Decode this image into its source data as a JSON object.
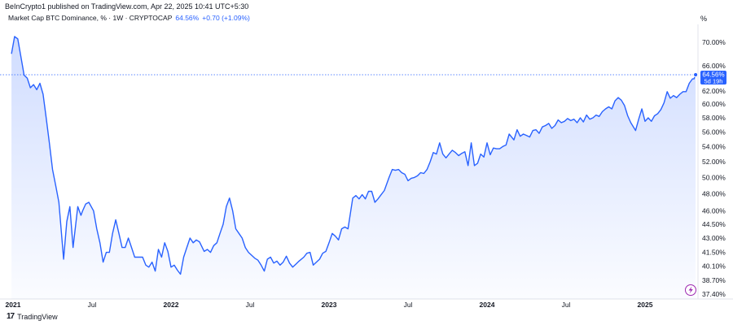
{
  "header": {
    "published_by": "BeInCrypto1 published on TradingView.com, Apr 22, 2025 10:41 UTC+5:30"
  },
  "legend": {
    "title": "Market Cap BTC Dominance, % · 1W · CRYPTOCAP",
    "value": "64.56%",
    "change": "+0.70 (+1.09%)"
  },
  "axis": {
    "unit": "%"
  },
  "price_label": {
    "value": "64.56%",
    "countdown": "5d 19h"
  },
  "footer": {
    "logo": "17",
    "brand": "TradingView"
  },
  "colors": {
    "line": "#2962ff",
    "label_bg": "#2962ff"
  },
  "chart_data": {
    "type": "area",
    "title": "Market Cap BTC Dominance, % · 1W · CRYPTOCAP",
    "y_tick_labels": [
      "70.00%",
      "66.00%",
      "62.00%",
      "60.00%",
      "58.00%",
      "56.00%",
      "54.00%",
      "52.00%",
      "50.00%",
      "48.00%",
      "46.00%",
      "44.50%",
      "43.00%",
      "41.50%",
      "40.10%",
      "38.70%",
      "37.40%"
    ],
    "y_tick_values": [
      70.0,
      66.0,
      62.0,
      60.0,
      58.0,
      56.0,
      54.0,
      52.0,
      50.0,
      48.0,
      46.0,
      44.5,
      43.0,
      41.5,
      40.1,
      38.7,
      37.4
    ],
    "scale": "log",
    "x_tick_labels": [
      {
        "label": "2021",
        "t": 2021.0,
        "bold": true
      },
      {
        "label": "Jul",
        "t": 2021.5,
        "bold": false
      },
      {
        "label": "2022",
        "t": 2022.0,
        "bold": true
      },
      {
        "label": "Jul",
        "t": 2022.5,
        "bold": false
      },
      {
        "label": "2023",
        "t": 2023.0,
        "bold": true
      },
      {
        "label": "Jul",
        "t": 2023.5,
        "bold": false
      },
      {
        "label": "2024",
        "t": 2024.0,
        "bold": true
      },
      {
        "label": "Jul",
        "t": 2024.5,
        "bold": false
      },
      {
        "label": "2025",
        "t": 2025.0,
        "bold": true
      }
    ],
    "last_value": 64.56,
    "series": [
      {
        "points": [
          [
            2020.99,
            68.0
          ],
          [
            2021.01,
            71.0
          ],
          [
            2021.03,
            70.6
          ],
          [
            2021.05,
            67.5
          ],
          [
            2021.07,
            64.5
          ],
          [
            2021.09,
            64.0
          ],
          [
            2021.11,
            62.5
          ],
          [
            2021.13,
            63.0
          ],
          [
            2021.15,
            62.2
          ],
          [
            2021.17,
            63.2
          ],
          [
            2021.19,
            61.5
          ],
          [
            2021.21,
            58.0
          ],
          [
            2021.23,
            54.5
          ],
          [
            2021.25,
            51.0
          ],
          [
            2021.27,
            49.0
          ],
          [
            2021.29,
            47.0
          ],
          [
            2021.32,
            40.8
          ],
          [
            2021.34,
            44.8
          ],
          [
            2021.36,
            46.5
          ],
          [
            2021.38,
            42.0
          ],
          [
            2021.41,
            46.5
          ],
          [
            2021.43,
            45.5
          ],
          [
            2021.44,
            46.0
          ],
          [
            2021.46,
            46.8
          ],
          [
            2021.48,
            47.0
          ],
          [
            2021.51,
            46.0
          ],
          [
            2021.53,
            44.0
          ],
          [
            2021.55,
            42.5
          ],
          [
            2021.57,
            40.5
          ],
          [
            2021.59,
            41.5
          ],
          [
            2021.61,
            41.5
          ],
          [
            2021.63,
            43.5
          ],
          [
            2021.65,
            45.0
          ],
          [
            2021.67,
            43.5
          ],
          [
            2021.69,
            42.0
          ],
          [
            2021.71,
            42.0
          ],
          [
            2021.73,
            43.0
          ],
          [
            2021.75,
            42.0
          ],
          [
            2021.77,
            41.0
          ],
          [
            2021.79,
            41.0
          ],
          [
            2021.82,
            41.0
          ],
          [
            2021.84,
            40.2
          ],
          [
            2021.86,
            40.0
          ],
          [
            2021.88,
            40.5
          ],
          [
            2021.9,
            39.6
          ],
          [
            2021.92,
            41.8
          ],
          [
            2021.94,
            41.0
          ],
          [
            2021.96,
            42.5
          ],
          [
            2021.98,
            41.6
          ],
          [
            2022.0,
            40.0
          ],
          [
            2022.02,
            40.2
          ],
          [
            2022.04,
            39.7
          ],
          [
            2022.06,
            39.3
          ],
          [
            2022.08,
            41.0
          ],
          [
            2022.1,
            42.0
          ],
          [
            2022.12,
            43.0
          ],
          [
            2022.14,
            42.5
          ],
          [
            2022.16,
            42.8
          ],
          [
            2022.18,
            42.6
          ],
          [
            2022.21,
            41.6
          ],
          [
            2022.23,
            41.8
          ],
          [
            2022.25,
            41.5
          ],
          [
            2022.27,
            42.2
          ],
          [
            2022.29,
            42.5
          ],
          [
            2022.31,
            43.5
          ],
          [
            2022.33,
            44.5
          ],
          [
            2022.35,
            46.5
          ],
          [
            2022.37,
            47.5
          ],
          [
            2022.39,
            46.0
          ],
          [
            2022.41,
            44.0
          ],
          [
            2022.43,
            43.5
          ],
          [
            2022.45,
            43.0
          ],
          [
            2022.47,
            42.0
          ],
          [
            2022.49,
            41.5
          ],
          [
            2022.51,
            41.2
          ],
          [
            2022.53,
            40.9
          ],
          [
            2022.55,
            40.7
          ],
          [
            2022.57,
            40.2
          ],
          [
            2022.59,
            39.6
          ],
          [
            2022.61,
            40.8
          ],
          [
            2022.63,
            41.0
          ],
          [
            2022.65,
            40.4
          ],
          [
            2022.67,
            40.6
          ],
          [
            2022.69,
            40.2
          ],
          [
            2022.71,
            40.5
          ],
          [
            2022.73,
            41.1
          ],
          [
            2022.75,
            40.4
          ],
          [
            2022.77,
            40.0
          ],
          [
            2022.79,
            40.3
          ],
          [
            2022.81,
            40.6
          ],
          [
            2022.84,
            41.0
          ],
          [
            2022.86,
            41.4
          ],
          [
            2022.88,
            41.5
          ],
          [
            2022.9,
            40.2
          ],
          [
            2022.92,
            40.5
          ],
          [
            2022.94,
            40.8
          ],
          [
            2022.96,
            41.4
          ],
          [
            2022.98,
            41.6
          ],
          [
            2023.0,
            42.5
          ],
          [
            2023.02,
            43.5
          ],
          [
            2023.04,
            43.2
          ],
          [
            2023.06,
            42.8
          ],
          [
            2023.08,
            44.0
          ],
          [
            2023.1,
            44.2
          ],
          [
            2023.12,
            44.0
          ],
          [
            2023.15,
            47.5
          ],
          [
            2023.17,
            47.8
          ],
          [
            2023.19,
            47.4
          ],
          [
            2023.21,
            47.9
          ],
          [
            2023.23,
            47.4
          ],
          [
            2023.25,
            48.3
          ],
          [
            2023.27,
            48.3
          ],
          [
            2023.29,
            47.0
          ],
          [
            2023.31,
            47.4
          ],
          [
            2023.33,
            47.9
          ],
          [
            2023.35,
            48.4
          ],
          [
            2023.38,
            50.0
          ],
          [
            2023.4,
            51.0
          ],
          [
            2023.42,
            50.9
          ],
          [
            2023.44,
            51.0
          ],
          [
            2023.46,
            50.6
          ],
          [
            2023.48,
            50.4
          ],
          [
            2023.5,
            49.6
          ],
          [
            2023.52,
            49.9
          ],
          [
            2023.54,
            50.0
          ],
          [
            2023.56,
            50.2
          ],
          [
            2023.58,
            50.6
          ],
          [
            2023.6,
            50.5
          ],
          [
            2023.62,
            51.0
          ],
          [
            2023.64,
            52.0
          ],
          [
            2023.66,
            53.2
          ],
          [
            2023.68,
            53.0
          ],
          [
            2023.7,
            54.5
          ],
          [
            2023.72,
            53.0
          ],
          [
            2023.74,
            52.5
          ],
          [
            2023.76,
            53.0
          ],
          [
            2023.78,
            53.5
          ],
          [
            2023.8,
            53.2
          ],
          [
            2023.82,
            52.8
          ],
          [
            2023.84,
            53.1
          ],
          [
            2023.86,
            53.3
          ],
          [
            2023.88,
            51.5
          ],
          [
            2023.9,
            54.5
          ],
          [
            2023.92,
            51.5
          ],
          [
            2023.94,
            51.8
          ],
          [
            2023.96,
            53.0
          ],
          [
            2023.98,
            52.6
          ],
          [
            2024.0,
            54.5
          ],
          [
            2024.02,
            52.9
          ],
          [
            2024.04,
            53.8
          ],
          [
            2024.06,
            53.7
          ],
          [
            2024.08,
            53.7
          ],
          [
            2024.1,
            54.0
          ],
          [
            2024.12,
            54.2
          ],
          [
            2024.14,
            55.7
          ],
          [
            2024.17,
            54.9
          ],
          [
            2024.19,
            56.3
          ],
          [
            2024.21,
            55.4
          ],
          [
            2024.23,
            55.7
          ],
          [
            2024.25,
            55.5
          ],
          [
            2024.27,
            55.3
          ],
          [
            2024.29,
            56.2
          ],
          [
            2024.31,
            56.3
          ],
          [
            2024.33,
            55.8
          ],
          [
            2024.35,
            56.7
          ],
          [
            2024.37,
            56.9
          ],
          [
            2024.39,
            57.2
          ],
          [
            2024.41,
            56.5
          ],
          [
            2024.43,
            56.9
          ],
          [
            2024.45,
            57.7
          ],
          [
            2024.47,
            57.3
          ],
          [
            2024.49,
            57.5
          ],
          [
            2024.51,
            57.9
          ],
          [
            2024.53,
            57.6
          ],
          [
            2024.55,
            57.8
          ],
          [
            2024.57,
            57.3
          ],
          [
            2024.59,
            58.0
          ],
          [
            2024.61,
            57.4
          ],
          [
            2024.63,
            58.4
          ],
          [
            2024.65,
            57.8
          ],
          [
            2024.67,
            58.0
          ],
          [
            2024.69,
            58.4
          ],
          [
            2024.71,
            58.2
          ],
          [
            2024.73,
            58.9
          ],
          [
            2024.75,
            59.3
          ],
          [
            2024.77,
            59.6
          ],
          [
            2024.79,
            59.3
          ],
          [
            2024.81,
            60.5
          ],
          [
            2024.83,
            61.0
          ],
          [
            2024.85,
            60.6
          ],
          [
            2024.87,
            59.8
          ],
          [
            2024.89,
            58.3
          ],
          [
            2024.91,
            57.3
          ],
          [
            2024.94,
            56.2
          ],
          [
            2024.96,
            57.8
          ],
          [
            2024.98,
            59.3
          ],
          [
            2025.0,
            57.5
          ],
          [
            2025.02,
            58.0
          ],
          [
            2025.04,
            57.5
          ],
          [
            2025.06,
            58.3
          ],
          [
            2025.08,
            58.6
          ],
          [
            2025.1,
            59.2
          ],
          [
            2025.12,
            60.2
          ],
          [
            2025.14,
            61.9
          ],
          [
            2025.16,
            60.9
          ],
          [
            2025.18,
            61.3
          ],
          [
            2025.2,
            61.0
          ],
          [
            2025.22,
            61.5
          ],
          [
            2025.24,
            61.9
          ],
          [
            2025.26,
            61.9
          ],
          [
            2025.28,
            63.2
          ],
          [
            2025.3,
            63.9
          ],
          [
            2025.31,
            63.9
          ],
          [
            2025.32,
            64.56
          ]
        ]
      }
    ]
  }
}
